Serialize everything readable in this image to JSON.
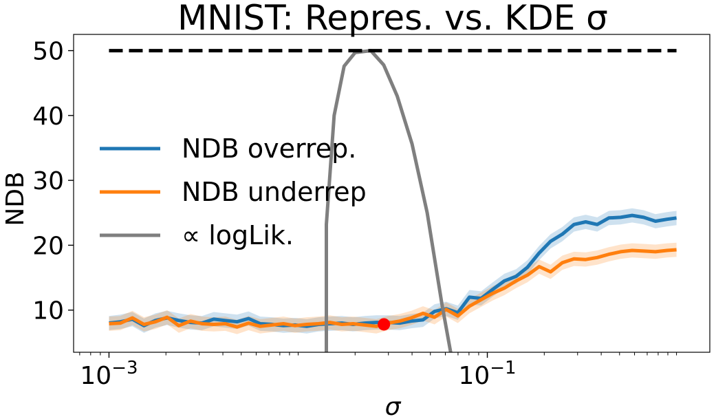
{
  "chart_data": {
    "type": "line",
    "title": "MNIST: Repres. vs. KDE σ",
    "xlabel": "σ",
    "ylabel": "NDB",
    "xscale": "log",
    "xlim": [
      0.00065,
      1.5
    ],
    "ylim": [
      3.5,
      52.5
    ],
    "xticks": [
      {
        "value": 0.001,
        "base": "10",
        "exp": "−3"
      },
      {
        "value": 0.1,
        "base": "10",
        "exp": "−1"
      }
    ],
    "yticks": [
      10,
      20,
      30,
      40,
      50
    ],
    "grid": false,
    "legend_position": "center-left",
    "x": [
      0.001,
      0.00115,
      0.00133,
      0.00153,
      0.00176,
      0.00203,
      0.00234,
      0.0027,
      0.0031,
      0.00358,
      0.00412,
      0.00475,
      0.00547,
      0.0063,
      0.00726,
      0.00836,
      0.00963,
      0.0111,
      0.0128,
      0.0147,
      0.017,
      0.0195,
      0.0225,
      0.0259,
      0.0299,
      0.0344,
      0.0396,
      0.0457,
      0.0526,
      0.0606,
      0.0698,
      0.0804,
      0.0927,
      0.107,
      0.123,
      0.142,
      0.163,
      0.188,
      0.216,
      0.249,
      0.287,
      0.331,
      0.381,
      0.439,
      0.506,
      0.583,
      0.671,
      0.774,
      0.891,
      1.0
    ],
    "series": [
      {
        "name": "NDB overrep.",
        "color": "#1f77b4",
        "values": [
          8.0,
          8.2,
          8.6,
          7.6,
          8.4,
          8.8,
          8.4,
          8.1,
          8.0,
          8.6,
          8.4,
          8.2,
          8.7,
          7.9,
          7.8,
          7.6,
          7.7,
          7.5,
          7.8,
          7.9,
          8.0,
          7.8,
          8.0,
          8.1,
          8.1,
          8.0,
          8.3,
          8.5,
          9.8,
          10.2,
          9.6,
          12.0,
          11.8,
          13.2,
          14.5,
          15.2,
          16.6,
          18.8,
          20.6,
          21.7,
          23.2,
          23.6,
          23.2,
          24.2,
          24.3,
          24.6,
          24.3,
          23.7,
          24.0,
          24.2
        ],
        "band": 1.1
      },
      {
        "name": "NDB underrep",
        "color": "#ff7f0e",
        "values": [
          7.9,
          8.0,
          8.8,
          7.8,
          8.2,
          8.9,
          7.6,
          8.3,
          7.9,
          7.8,
          7.9,
          7.4,
          8.0,
          7.5,
          7.7,
          7.9,
          7.6,
          7.8,
          7.9,
          8.1,
          7.8,
          7.9,
          7.7,
          7.5,
          8.0,
          8.3,
          8.8,
          9.5,
          8.9,
          10.1,
          9.1,
          10.6,
          11.6,
          12.6,
          13.4,
          14.5,
          15.4,
          16.7,
          15.9,
          17.3,
          17.9,
          17.8,
          18.1,
          18.6,
          19.0,
          19.2,
          19.1,
          19.0,
          19.2,
          19.3
        ],
        "band": 1.1
      },
      {
        "name": "∝ logLik.",
        "color": "#7f7f7f",
        "x": [
          0.0141,
          0.0141,
          0.0155,
          0.0175,
          0.02,
          0.0242,
          0.0283,
          0.0334,
          0.04,
          0.0481,
          0.0575,
          0.064
        ],
        "values": [
          3.5,
          23.2,
          40.0,
          47.6,
          49.7,
          50.0,
          47.8,
          43.0,
          35.6,
          25.0,
          11.0,
          3.5
        ]
      }
    ],
    "reference_line": {
      "y": 50,
      "color": "#000000",
      "style": "dashed"
    },
    "marker": {
      "x": 0.0284,
      "y": 7.8,
      "color": "#ff0000"
    }
  }
}
